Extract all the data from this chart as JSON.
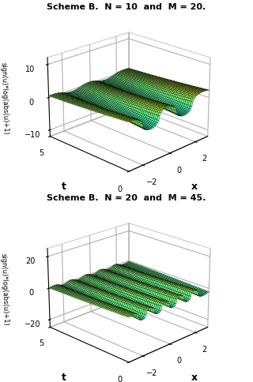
{
  "plot1": {
    "title": "Scheme B.  N = 10  and  M = 20.",
    "N": 10,
    "M": 20,
    "zlim": [
      -12,
      12
    ],
    "zticks": [
      -10,
      0,
      10
    ],
    "amplitude_scale": 12.0,
    "n_spikes": 5
  },
  "plot2": {
    "title": "Scheme B.  N = 20  and  M = 45.",
    "N": 20,
    "M": 45,
    "zlim": [
      -25,
      25
    ],
    "zticks": [
      -20,
      0,
      20
    ],
    "amplitude_scale": 22.0,
    "n_spikes": 10
  },
  "x_range": [
    -3.0,
    3.0
  ],
  "t_range": [
    0,
    5
  ],
  "xlabel": "x",
  "tlabel": "t",
  "ylabel": "sign(u)*log(abs(u)+1)",
  "background_color": "#ffffff",
  "elev": 22,
  "azim": -135,
  "nx": 80,
  "nt": 50
}
